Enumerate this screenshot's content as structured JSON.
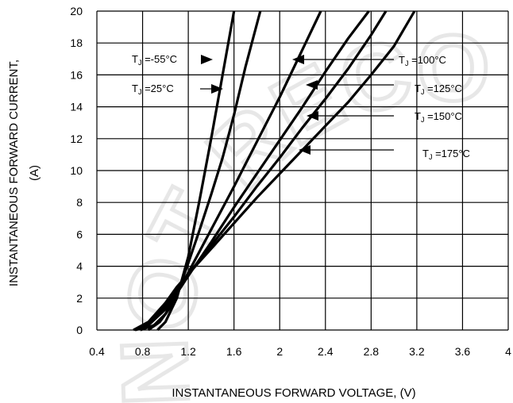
{
  "watermark": {
    "text": "NOT RECOMMENDED",
    "color": "#000000"
  },
  "chart_data": {
    "type": "line",
    "title": "",
    "xlabel": "INSTANTANEOUS FORWARD VOLTAGE, (V)",
    "ylabel_line1": "INSTANTANEOUS FORWARD CURRENT,",
    "ylabel_line2": "(A)",
    "xlim": [
      0.4,
      4.0
    ],
    "ylim": [
      0,
      20
    ],
    "x_ticks": [
      "0.4",
      "0.8",
      "1.2",
      "1.6",
      "2",
      "2.4",
      "2.8",
      "3.2",
      "3.6",
      "4"
    ],
    "y_ticks": [
      "0",
      "2",
      "4",
      "6",
      "8",
      "10",
      "12",
      "14",
      "16",
      "18",
      "20"
    ],
    "grid": true,
    "series": [
      {
        "name": "TJ = -55°C",
        "label_prefix": "T",
        "label_sub": "J",
        "label_suffix": " =-55°C",
        "x": [
          0.93,
          1.0,
          1.1,
          1.2,
          1.3,
          1.4,
          1.5,
          1.6
        ],
        "y": [
          0,
          0.5,
          2.0,
          4.6,
          8.2,
          12.0,
          16.0,
          20.0
        ]
      },
      {
        "name": "TJ = 25°C",
        "label_prefix": "T",
        "label_sub": "J",
        "label_suffix": " =25°C",
        "x": [
          0.85,
          0.95,
          1.05,
          1.15,
          1.2,
          1.3,
          1.4,
          1.5,
          1.6,
          1.7,
          1.83
        ],
        "y": [
          0,
          0.5,
          1.5,
          3.2,
          4.2,
          6.3,
          8.5,
          10.8,
          13.5,
          16.5,
          20.0
        ]
      },
      {
        "name": "TJ = 100°C",
        "label_prefix": "T",
        "label_sub": "J",
        "label_suffix": " =100°C",
        "x": [
          0.78,
          0.9,
          1.0,
          1.1,
          1.2,
          1.4,
          1.6,
          1.8,
          2.0,
          2.2,
          2.36
        ],
        "y": [
          0,
          0.3,
          1.0,
          2.3,
          3.6,
          6.3,
          9.0,
          11.8,
          14.6,
          17.6,
          20.0
        ]
      },
      {
        "name": "TJ = 125°C",
        "label_prefix": "T",
        "label_sub": "J",
        "label_suffix": " =125°C",
        "x": [
          0.74,
          0.85,
          1.0,
          1.1,
          1.2,
          1.4,
          1.6,
          1.8,
          2.0,
          2.2,
          2.4,
          2.6,
          2.78
        ],
        "y": [
          0,
          0.3,
          1.3,
          2.3,
          3.4,
          5.5,
          7.7,
          9.8,
          11.9,
          14.0,
          16.2,
          18.3,
          20.0
        ]
      },
      {
        "name": "TJ = 150°C",
        "label_prefix": "T",
        "label_sub": "J",
        "label_suffix": " =150°C",
        "x": [
          0.73,
          0.85,
          1.0,
          1.1,
          1.2,
          1.4,
          1.6,
          1.8,
          2.0,
          2.2,
          2.4,
          2.6,
          2.8,
          2.93
        ],
        "y": [
          0,
          0.4,
          1.5,
          2.5,
          3.5,
          5.3,
          7.1,
          9.0,
          10.8,
          12.7,
          14.5,
          16.4,
          18.5,
          20.0
        ]
      },
      {
        "name": "TJ = 175°C",
        "label_prefix": "T",
        "label_sub": "J",
        "label_suffix": " =175°C",
        "x": [
          0.72,
          0.85,
          1.0,
          1.1,
          1.2,
          1.4,
          1.6,
          1.8,
          2.0,
          2.2,
          2.4,
          2.6,
          2.8,
          3.0,
          3.18
        ],
        "y": [
          0,
          0.5,
          1.7,
          2.7,
          3.5,
          5.1,
          6.7,
          8.3,
          9.8,
          11.3,
          12.8,
          14.3,
          16.0,
          17.8,
          20.0
        ]
      }
    ]
  }
}
